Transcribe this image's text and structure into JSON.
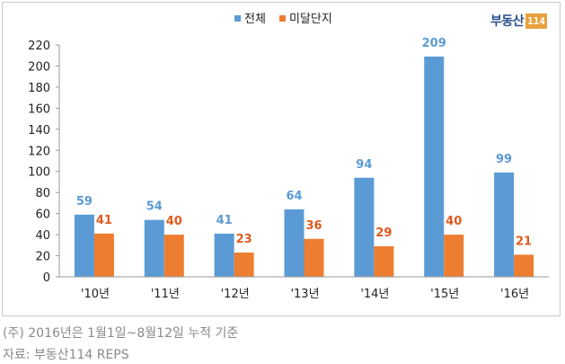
{
  "chart_data": {
    "type": "bar",
    "categories": [
      "'10년",
      "'11년",
      "'12년",
      "'13년",
      "'14년",
      "'15년",
      "'16년"
    ],
    "series": [
      {
        "name": "전체",
        "values": [
          59,
          54,
          41,
          64,
          94,
          209,
          99
        ],
        "color": "#5b9bd5",
        "label_color": "#5b9bd5"
      },
      {
        "name": "미달단지",
        "values": [
          41,
          40,
          23,
          36,
          29,
          40,
          21
        ],
        "color": "#ed7d31",
        "label_color": "#e05a1e"
      }
    ],
    "ylim": [
      0,
      220
    ],
    "yticks": [
      0,
      20,
      40,
      60,
      80,
      100,
      120,
      140,
      160,
      180,
      200,
      220
    ],
    "legend_position": "top-center",
    "grid": false
  },
  "logo": {
    "text": "부동산",
    "badge": "114"
  },
  "notes": {
    "footnote": "(주) 2016년은 1월1일~8월12일 누적 기준",
    "source": "자료: 부동산114 REPS"
  }
}
